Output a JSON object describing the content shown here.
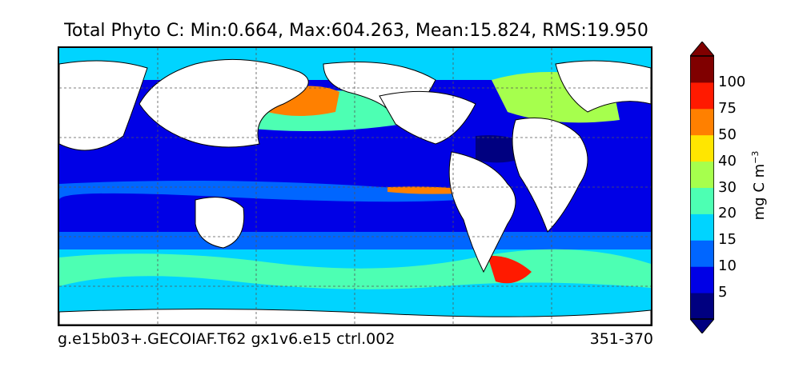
{
  "title": "Total Phyto C: Min:0.664, Max:604.263, Mean:15.824, RMS:19.950",
  "footer_left": "g.e15b03+.GECOIAF.T62 gx1v6.e15 ctrl.002",
  "footer_right": "351-370",
  "colorbar": {
    "unit_base": "mg C m",
    "unit_exp": "−3",
    "levels": [
      "5",
      "10",
      "15",
      "20",
      "30",
      "40",
      "50",
      "75",
      "100"
    ],
    "colors": [
      "#000080",
      "#0000e6",
      "#0066ff",
      "#00d4ff",
      "#4dffb3",
      "#a6ff4d",
      "#ffe600",
      "#ff8000",
      "#ff1a00",
      "#800000"
    ]
  }
}
